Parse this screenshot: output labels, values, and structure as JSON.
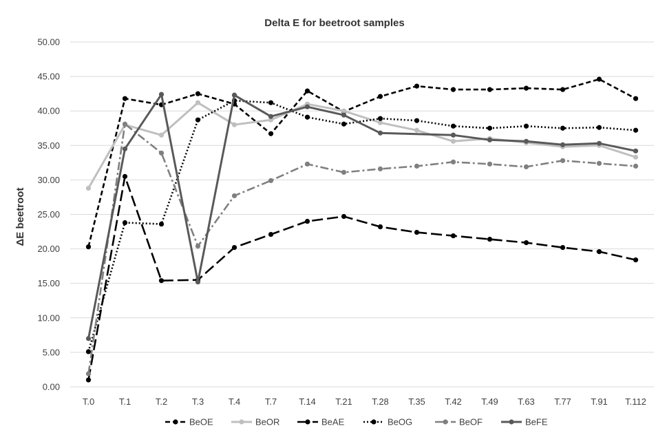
{
  "chart_data": {
    "type": "line",
    "title": "Delta E for beetroot samples",
    "ylabel": "ΔE  beetroot",
    "xlabel": "",
    "categories": [
      "T.0",
      "T.1",
      "T.2",
      "T.3",
      "T.4",
      "T.7",
      "T.14",
      "T.21",
      "T.28",
      "T.35",
      "T.42",
      "T.49",
      "T.63",
      "T.77",
      "T.91",
      "T.112"
    ],
    "ylim": [
      0,
      50
    ],
    "ytick_step": 5,
    "ytick_labels": [
      "0.00",
      "5.00",
      "10.00",
      "15.00",
      "20.00",
      "25.00",
      "30.00",
      "35.00",
      "40.00",
      "45.00",
      "50.00"
    ],
    "grid": "horizontal",
    "legend_position": "bottom",
    "series": [
      {
        "name": "BeOE",
        "color": "#000000",
        "style": "dash",
        "values": [
          20.3,
          41.8,
          40.9,
          42.5,
          41.0,
          36.7,
          42.9,
          39.9,
          42.1,
          43.6,
          43.1,
          43.1,
          43.3,
          43.1,
          44.6,
          41.8
        ]
      },
      {
        "name": "BeOR",
        "color": "#bfbfbf",
        "style": "solid",
        "values": [
          28.8,
          38.0,
          36.5,
          41.2,
          38.0,
          38.7,
          41.0,
          40.0,
          38.3,
          37.2,
          35.6,
          36.0,
          35.4,
          34.8,
          35.0,
          33.3
        ]
      },
      {
        "name": "BeAE",
        "color": "#000000",
        "style": "longdash",
        "values": [
          1.0,
          30.5,
          15.4,
          15.5,
          20.2,
          22.1,
          24.0,
          24.7,
          23.2,
          22.4,
          21.9,
          21.4,
          20.9,
          20.2,
          19.6,
          18.4
        ]
      },
      {
        "name": "BeOG",
        "color": "#000000",
        "style": "dot",
        "values": [
          5.1,
          23.8,
          23.6,
          38.7,
          41.5,
          41.2,
          39.1,
          38.1,
          38.9,
          38.6,
          37.8,
          37.5,
          37.8,
          37.5,
          37.6,
          37.2
        ]
      },
      {
        "name": "BeOF",
        "color": "#808080",
        "style": "dashdot",
        "values": [
          1.9,
          38.1,
          33.9,
          20.4,
          27.7,
          29.9,
          32.3,
          31.1,
          31.6,
          32.0,
          32.6,
          32.3,
          31.9,
          32.8,
          32.4,
          32.0
        ]
      },
      {
        "name": "BeFE",
        "color": "#595959",
        "style": "solid",
        "values": [
          7.0,
          34.5,
          42.4,
          15.2,
          42.3,
          39.2,
          40.6,
          39.4,
          36.8,
          null,
          36.5,
          35.8,
          35.6,
          35.1,
          35.3,
          34.2
        ]
      }
    ]
  }
}
